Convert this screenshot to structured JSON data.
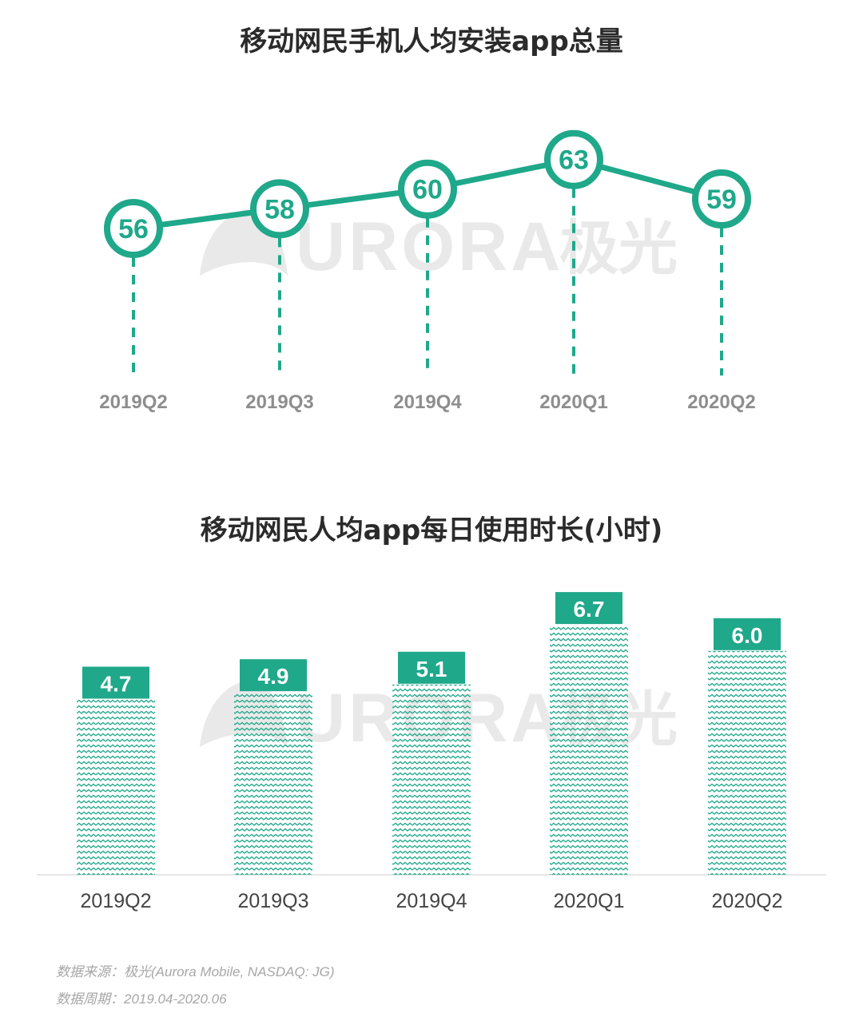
{
  "colors": {
    "accent": "#1fa88a",
    "title": "#2b2b2b",
    "tick_bold": "#8e8e8e",
    "tick_plain": "#444444",
    "axis": "#dddddd",
    "watermark": "#e8e8e8",
    "note": "#a7a7a7"
  },
  "watermark": {
    "logo_icon": "aurora-logo-icon",
    "text": "URORA",
    "cn_text": "极光"
  },
  "chart_data": [
    {
      "type": "line",
      "title": "移动网民手机人均安装app总量",
      "categories": [
        "2019Q2",
        "2019Q3",
        "2019Q4",
        "2020Q1",
        "2020Q2"
      ],
      "values": [
        56,
        58,
        60,
        63,
        59
      ],
      "data_labels": [
        "56",
        "58",
        "60",
        "63",
        "59"
      ],
      "xlabel": "",
      "ylabel": "",
      "ylim": [
        50,
        65
      ],
      "grid": false,
      "drop_lines": "dashed"
    },
    {
      "type": "bar",
      "title": "移动网民人均app每日使用时长(小时)",
      "categories": [
        "2019Q2",
        "2019Q3",
        "2019Q4",
        "2020Q1",
        "2020Q2"
      ],
      "values": [
        4.7,
        4.9,
        5.1,
        6.7,
        6.0
      ],
      "data_labels": [
        "4.7",
        "4.9",
        "5.1",
        "6.7",
        "6.0"
      ],
      "xlabel": "",
      "ylabel": "",
      "ylim": [
        0,
        8
      ],
      "grid": false,
      "bar_fill": "zigzag-pattern"
    }
  ],
  "footnotes": {
    "source": "数据来源：极光(Aurora Mobile, NASDAQ: JG)",
    "period": "数据周期：2019.04-2020.06"
  }
}
